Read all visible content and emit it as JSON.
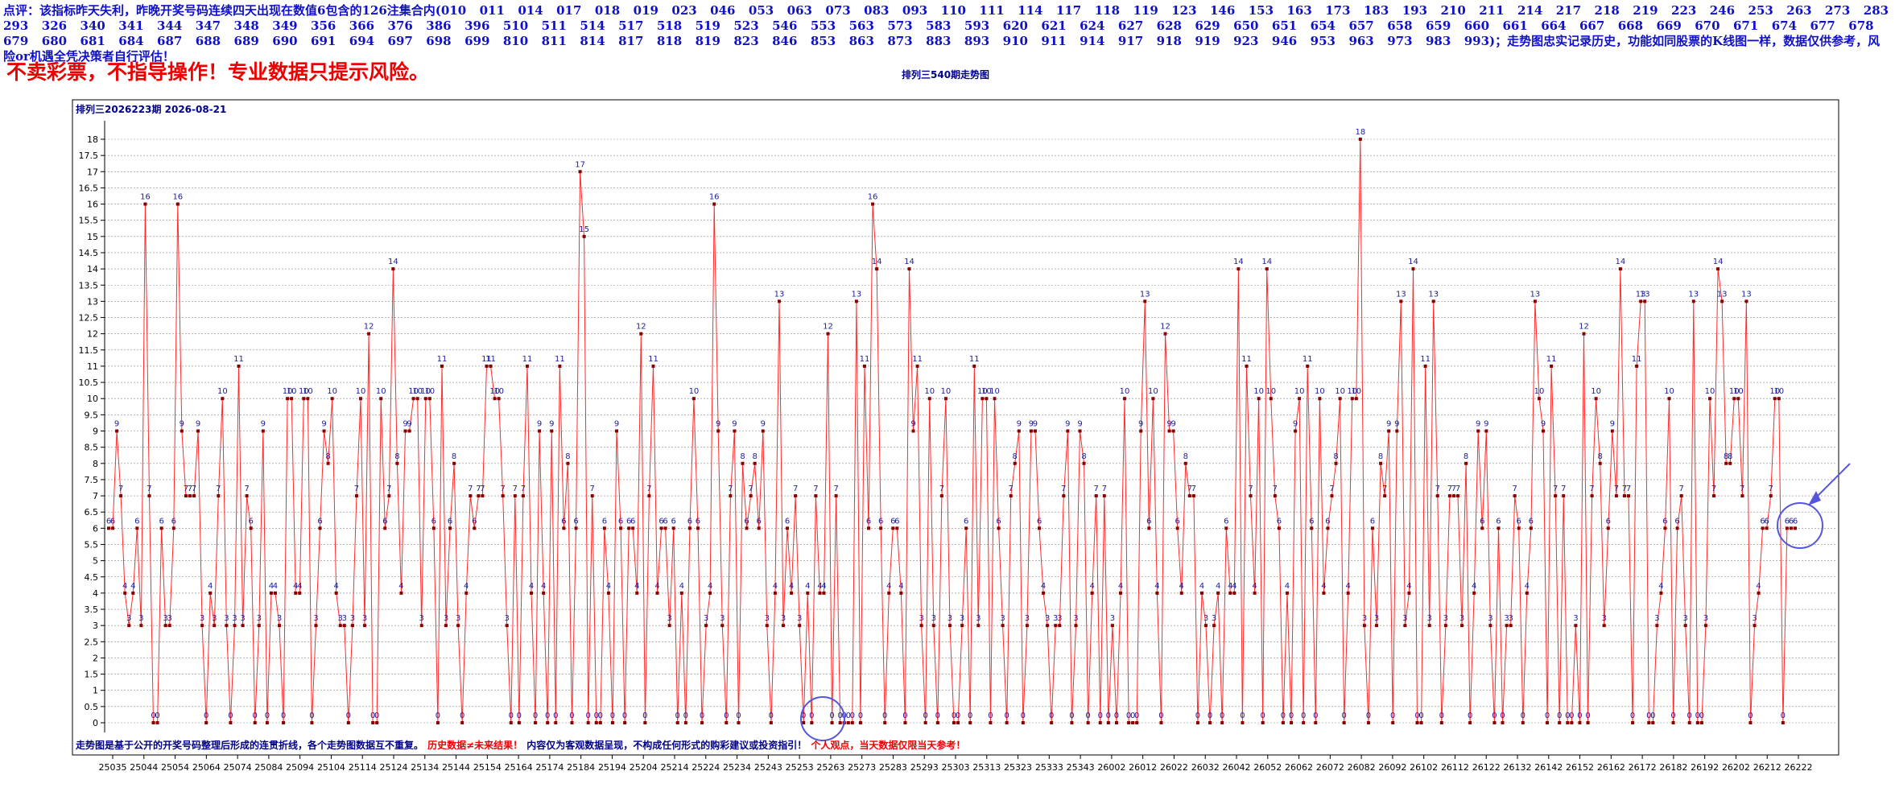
{
  "header": {
    "note": "点评：该指标昨天失利，昨晚开奖号码连续四天出现在数值6包含的126注集合内(010  011  014  017  018  019  023  046  053  063  073  083  093  110  111  114  117  118  119  123  146  153  163  173  183  193  210  211  214  217  218  219  223  246  253  263  273  283  293  326  340  341  344  347  348  349  356  366  376  386  396  510  511  514  517  518  519  523  546  553  563  573  583  593  620  621  624  627  628  629  650  651  654  657  658  659  660  661  664  667  668  669  670  671  674  677  678  679  680  681  684  687  688  689  690  691  694  697  698  699  810  811  814  817  818  819  823  846  853  863  873  883  893  910  911  914  917  918  919  923  946  953  963  973  983  993)；走势图忠实记录历史，功能如同股票的K线图一样，数据仅供参考，风险or机遇全凭决策者自行评估！",
    "warning": "不卖彩票，不指导操作！专业数据只提示风险。"
  },
  "chart_data": {
    "type": "line",
    "title": "排列三540期走势图",
    "issue_label": "排列三2026223期  2026-08-21",
    "x_ticks": [
      "25035",
      "25044",
      "25054",
      "25064",
      "25074",
      "25084",
      "25094",
      "25104",
      "25114",
      "25124",
      "25134",
      "25144",
      "25154",
      "25164",
      "25174",
      "25184",
      "25194",
      "25204",
      "25214",
      "25224",
      "25234",
      "25243",
      "25253",
      "25263",
      "25273",
      "25283",
      "25293",
      "25303",
      "25313",
      "25323",
      "25333",
      "25343",
      "26002",
      "26012",
      "26022",
      "26032",
      "26042",
      "26052",
      "26062",
      "26072",
      "26082",
      "26092",
      "26102",
      "26112",
      "26122",
      "26132",
      "26142",
      "26152",
      "26162",
      "26172",
      "26182",
      "26192",
      "26202",
      "26212",
      "26222"
    ],
    "y_ticks": [
      "0",
      "0.5",
      "1",
      "1.5",
      "2",
      "2.5",
      "3",
      "3.5",
      "4",
      "4.5",
      "5",
      "5.5",
      "6",
      "6.5",
      "7",
      "7.5",
      "8",
      "8.5",
      "9",
      "9.5",
      "10",
      "10.5",
      "11",
      "11.5",
      "12",
      "12.5",
      "13",
      "13.5",
      "14",
      "14.5",
      "15",
      "15.5",
      "16",
      "16.5",
      "17",
      "17.5",
      "18"
    ],
    "ylim": [
      0,
      18
    ],
    "grid": true,
    "series": [
      {
        "values": [
          6,
          6,
          9,
          7,
          4,
          3,
          4,
          6,
          3,
          16,
          7,
          0,
          0,
          6,
          3,
          3,
          6,
          16,
          9,
          7,
          7,
          7,
          9,
          3,
          0,
          4,
          3,
          7,
          10,
          3,
          0,
          3,
          11,
          3,
          7,
          6,
          0,
          3,
          9,
          0,
          4,
          4,
          3,
          0,
          10,
          10,
          4,
          4,
          10,
          10,
          0,
          3,
          6,
          9,
          8,
          10,
          4,
          3,
          3,
          0,
          3,
          7,
          10,
          3,
          12,
          0,
          0,
          10,
          6,
          7,
          14,
          8,
          4,
          9,
          9,
          10,
          10,
          3,
          10,
          10,
          6,
          0,
          11,
          3,
          6,
          8,
          3,
          0,
          4,
          7,
          6,
          7,
          7,
          11,
          11,
          10,
          10,
          7,
          3,
          0,
          7,
          0,
          7,
          11,
          4,
          0,
          9,
          4,
          0,
          9,
          0,
          11,
          6,
          8,
          0,
          6,
          17,
          15,
          0,
          7,
          0,
          0,
          6,
          4,
          0,
          9,
          6,
          0,
          6,
          6,
          4,
          12,
          0,
          7,
          11,
          4,
          6,
          6,
          3,
          6,
          0,
          4,
          0,
          6,
          10,
          6,
          0,
          3,
          4,
          16,
          9,
          3,
          0,
          7,
          9,
          0,
          8,
          6,
          7,
          8,
          6,
          9,
          3,
          0,
          4,
          13,
          3,
          6,
          4,
          7,
          3,
          0,
          4,
          0,
          7,
          4,
          4,
          12,
          0,
          7,
          0,
          0,
          0,
          0,
          13,
          0,
          11,
          6,
          16,
          14,
          6,
          0,
          4,
          6,
          6,
          4,
          0,
          14,
          9,
          11,
          3,
          0,
          10,
          3,
          0,
          7,
          10,
          3,
          0,
          0,
          3,
          6,
          0,
          11,
          3,
          10,
          10,
          0,
          10,
          6,
          3,
          0,
          7,
          8,
          9,
          0,
          3,
          9,
          9,
          6,
          4,
          3,
          0,
          3,
          3,
          7,
          9,
          0,
          3,
          9,
          8,
          0,
          4,
          7,
          0,
          7,
          0,
          3,
          0,
          4,
          10,
          0,
          0,
          0,
          9,
          13,
          6,
          10,
          4,
          0,
          12,
          9,
          9,
          6,
          4,
          8,
          7,
          7,
          0,
          4,
          3,
          0,
          3,
          4,
          0,
          6,
          4,
          4,
          14,
          0,
          11,
          7,
          4,
          10,
          0,
          14,
          10,
          7,
          6,
          0,
          4,
          0,
          9,
          10,
          0,
          11,
          6,
          0,
          10,
          4,
          6,
          7,
          8,
          10,
          0,
          4,
          10,
          10,
          18,
          3,
          0,
          6,
          3,
          8,
          7,
          9,
          0,
          9,
          13,
          3,
          4,
          14,
          0,
          0,
          11,
          3,
          13,
          7,
          0,
          3,
          7,
          7,
          7,
          3,
          8,
          0,
          4,
          9,
          6,
          9,
          3,
          0,
          6,
          0,
          3,
          3,
          7,
          6,
          0,
          4,
          6,
          13,
          10,
          9,
          0,
          11,
          7,
          0,
          7,
          0,
          0,
          3,
          0,
          12,
          0,
          7,
          10,
          8,
          3,
          6,
          9,
          7,
          14,
          7,
          7,
          0,
          11,
          13,
          13,
          0,
          0,
          3,
          4,
          6,
          10,
          0,
          6,
          7,
          3,
          0,
          13,
          0,
          0,
          3,
          10,
          7,
          14,
          13,
          8,
          8,
          10,
          10,
          7,
          13,
          0,
          3,
          4,
          6,
          6,
          7,
          10,
          10,
          0,
          6,
          6,
          6
        ]
      }
    ],
    "peak_labels": true
  },
  "footer": {
    "text_blue_1": "走势图是基于公开的开奖号码整理后形成的连贯折线，各个走势图数据互不重复。",
    "text_red_1": "历史数据≠未来结果！",
    "text_blue_2": "内容仅为客观数据呈现，不构成任何形式的购彩建议或投资指引！",
    "text_red_2": "个人观点，当天数据仅限当天参考！"
  },
  "colors": {
    "line": "#ff2a2a",
    "marker": "#8b0000",
    "label": "#2020a0",
    "axis": "#000000",
    "grid": "#888888",
    "highlight": "#5555dd"
  }
}
